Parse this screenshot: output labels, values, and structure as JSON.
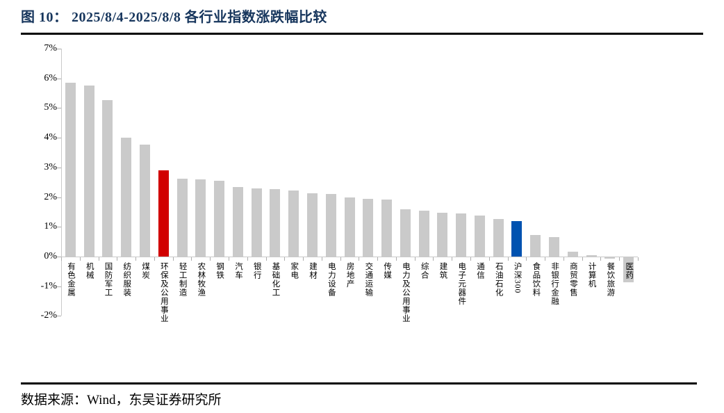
{
  "figure": {
    "title": "图 10： 2025/8/4-2025/8/8 各行业指数涨跌幅比较",
    "source": "数据来源：Wind，东吴证券研究所"
  },
  "chart_data": {
    "type": "bar",
    "title": "2025/8/4-2025/8/8 各行业指数涨跌幅比较",
    "unit": "%",
    "grid": false,
    "legend": false,
    "ylim": [
      -2,
      7
    ],
    "y_ticks": [
      "7%",
      "6%",
      "5%",
      "4%",
      "3%",
      "2%",
      "1%",
      "0%",
      "-1%",
      "-2%"
    ],
    "categories": [
      "有色金属",
      "机械",
      "国防军工",
      "纺织服装",
      "煤炭",
      "环保及公用事业",
      "轻工制造",
      "农林牧渔",
      "钢铁",
      "汽车",
      "银行",
      "基础化工",
      "家电",
      "建材",
      "电力设备",
      "房地产",
      "交通运输",
      "传媒",
      "电力及公用事业",
      "综合",
      "建筑",
      "电子元器件",
      "通信",
      "石油石化",
      "沪深300",
      "食品饮料",
      "非银行金融",
      "商贸零售",
      "计算机",
      "餐饮旅游",
      "医药"
    ],
    "values": [
      5.85,
      5.76,
      5.26,
      4.0,
      3.76,
      2.89,
      2.63,
      2.6,
      2.55,
      2.35,
      2.3,
      2.26,
      2.23,
      2.13,
      2.1,
      2.0,
      1.95,
      1.91,
      1.58,
      1.55,
      1.48,
      1.44,
      1.37,
      1.27,
      1.2,
      0.72,
      0.66,
      0.15,
      0.05,
      -0.05,
      -0.85
    ],
    "colors": {
      "bar_default": "#CACACA",
      "bar_highlight_red": "#D10000",
      "bar_highlight_blue": "#0052B0",
      "axis": "#C9C9C9",
      "title_navy": "#17365D"
    },
    "highlights": {
      "环保及公用事业": "bar_highlight_red",
      "沪深300": "bar_highlight_blue"
    }
  }
}
